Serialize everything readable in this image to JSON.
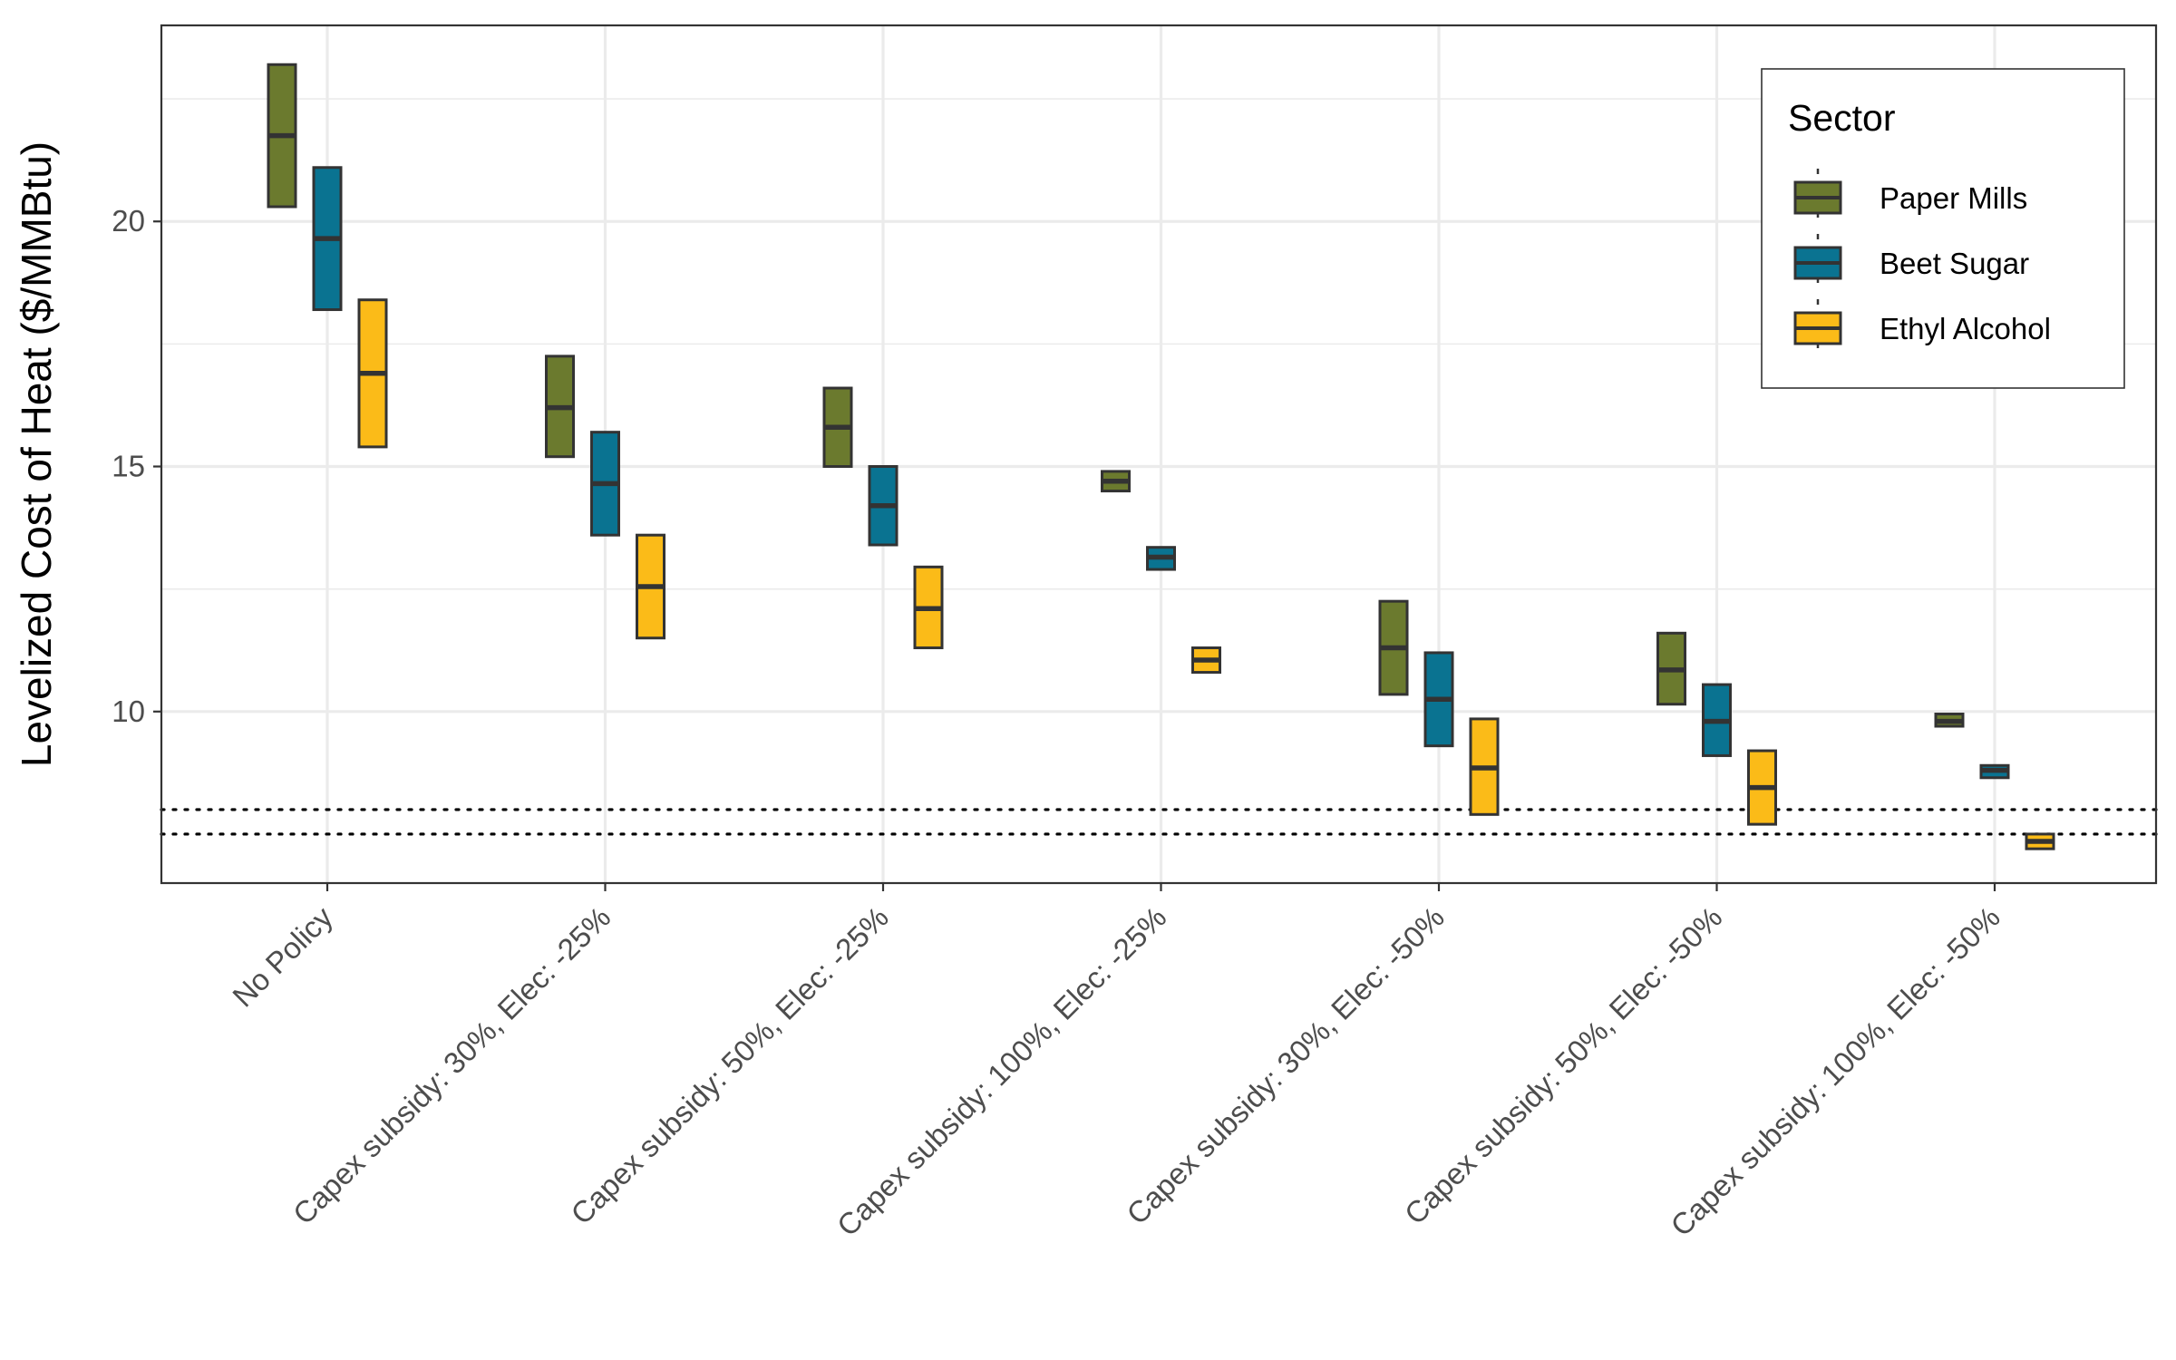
{
  "chart_data": {
    "type": "box",
    "title": "",
    "xlabel": "",
    "ylabel": "Levelized Cost of Heat ($/MMBtu)",
    "ylim": [
      6.5,
      24
    ],
    "yticks": [
      10,
      15,
      20
    ],
    "grid": true,
    "legend_position": "top-right",
    "legend_title": "Sector",
    "categories": [
      "No Policy",
      "Capex subsidy: 30%, Elec: -25%",
      "Capex subsidy: 50%, Elec: -25%",
      "Capex subsidy: 100%, Elec: -25%",
      "Capex subsidy: 30%, Elec: -50%",
      "Capex subsidy: 50%, Elec: -50%",
      "Capex subsidy: 100%, Elec: -50%"
    ],
    "reference_lines": [
      8.0,
      7.5
    ],
    "series": [
      {
        "name": "Paper Mills",
        "color": "#6b7a2e",
        "boxes": [
          {
            "low": 20.3,
            "mid": 21.75,
            "high": 23.2
          },
          {
            "low": 15.2,
            "mid": 16.2,
            "high": 17.25
          },
          {
            "low": 15.0,
            "mid": 15.8,
            "high": 16.6
          },
          {
            "low": 14.5,
            "mid": 14.7,
            "high": 14.9
          },
          {
            "low": 10.35,
            "mid": 11.3,
            "high": 12.25
          },
          {
            "low": 10.15,
            "mid": 10.85,
            "high": 11.6
          },
          {
            "low": 9.7,
            "mid": 9.8,
            "high": 9.95
          }
        ]
      },
      {
        "name": "Beet Sugar",
        "color": "#0a7391",
        "boxes": [
          {
            "low": 18.2,
            "mid": 19.65,
            "high": 21.1
          },
          {
            "low": 13.6,
            "mid": 14.65,
            "high": 15.7
          },
          {
            "low": 13.4,
            "mid": 14.2,
            "high": 15.0
          },
          {
            "low": 12.9,
            "mid": 13.15,
            "high": 13.35
          },
          {
            "low": 9.3,
            "mid": 10.25,
            "high": 11.2
          },
          {
            "low": 9.1,
            "mid": 9.8,
            "high": 10.55
          },
          {
            "low": 8.65,
            "mid": 8.8,
            "high": 8.9
          }
        ]
      },
      {
        "name": "Ethyl Alcohol",
        "color": "#fbbb18",
        "boxes": [
          {
            "low": 15.4,
            "mid": 16.9,
            "high": 18.4
          },
          {
            "low": 11.5,
            "mid": 12.55,
            "high": 13.6
          },
          {
            "low": 11.3,
            "mid": 12.1,
            "high": 12.95
          },
          {
            "low": 10.8,
            "mid": 11.05,
            "high": 11.3
          },
          {
            "low": 7.9,
            "mid": 8.85,
            "high": 9.85
          },
          {
            "low": 7.7,
            "mid": 8.45,
            "high": 9.2
          },
          {
            "low": 7.2,
            "mid": 7.35,
            "high": 7.5
          }
        ]
      }
    ]
  }
}
